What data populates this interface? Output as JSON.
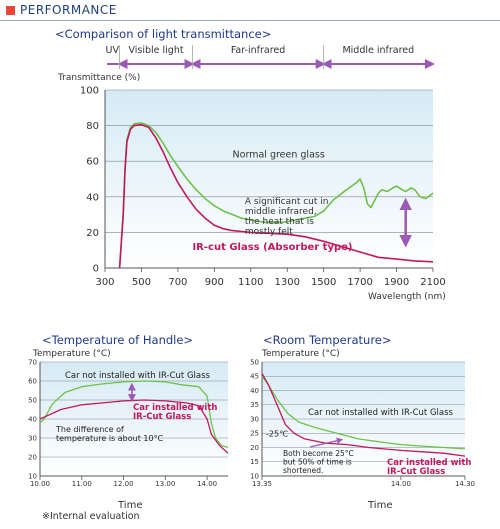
{
  "header": {
    "title": "PERFORMANCE"
  },
  "footnote": "※Internal evaluation",
  "colors": {
    "accent": "#e8453c",
    "title": "#1f3a8a",
    "green": "#6cc24a",
    "magenta": "#c2185b",
    "arrow": "#9c59b6",
    "plot_bg_top": "#e4f1f8",
    "plot_bg_bottom": "#ffffff"
  },
  "chart_data": [
    {
      "type": "line",
      "title": "<Comparison of light transmittance>",
      "xlabel": "Wavelength (nm)",
      "ylabel": "Transmittance (%)",
      "xlim": [
        300,
        2100
      ],
      "ylim": [
        0,
        100
      ],
      "x_ticks": [
        300,
        500,
        700,
        900,
        1100,
        1300,
        1500,
        1700,
        1900,
        2100
      ],
      "y_ticks": [
        0,
        20,
        40,
        60,
        80,
        100
      ],
      "grid": true,
      "bands": [
        {
          "label": "UV",
          "from": 300,
          "to": 380
        },
        {
          "label": "Visible light",
          "from": 380,
          "to": 780
        },
        {
          "label": "Far-infrared",
          "from": 780,
          "to": 1500
        },
        {
          "label": "Middle infrared",
          "from": 1500,
          "to": 2100
        }
      ],
      "series": [
        {
          "name": "Normal green glass",
          "color": "#6cc24a",
          "points": [
            [
              380,
              0
            ],
            [
              400,
              30
            ],
            [
              410,
              55
            ],
            [
              420,
              72
            ],
            [
              440,
              79
            ],
            [
              460,
              81
            ],
            [
              500,
              81.5
            ],
            [
              540,
              80
            ],
            [
              580,
              76
            ],
            [
              620,
              70
            ],
            [
              660,
              63
            ],
            [
              700,
              57
            ],
            [
              750,
              50
            ],
            [
              800,
              44
            ],
            [
              850,
              39
            ],
            [
              900,
              35
            ],
            [
              950,
              32
            ],
            [
              1000,
              30
            ],
            [
              1050,
              28
            ],
            [
              1100,
              27
            ],
            [
              1150,
              26
            ],
            [
              1200,
              25.5
            ],
            [
              1250,
              25.5
            ],
            [
              1300,
              26
            ],
            [
              1350,
              27
            ],
            [
              1400,
              28
            ],
            [
              1450,
              29
            ],
            [
              1500,
              32
            ],
            [
              1550,
              38
            ],
            [
              1600,
              42
            ],
            [
              1640,
              45
            ],
            [
              1680,
              48
            ],
            [
              1700,
              50
            ],
            [
              1720,
              45
            ],
            [
              1740,
              36
            ],
            [
              1760,
              34
            ],
            [
              1780,
              38
            ],
            [
              1800,
              42
            ],
            [
              1820,
              44
            ],
            [
              1850,
              43
            ],
            [
              1880,
              45
            ],
            [
              1900,
              46
            ],
            [
              1930,
              44
            ],
            [
              1950,
              43
            ],
            [
              1980,
              45
            ],
            [
              2000,
              44
            ],
            [
              2030,
              40
            ],
            [
              2060,
              39
            ],
            [
              2100,
              42
            ]
          ]
        },
        {
          "name": "IR-cut Glass (Absorber type)",
          "color": "#c2185b",
          "points": [
            [
              380,
              0
            ],
            [
              400,
              30
            ],
            [
              410,
              55
            ],
            [
              420,
              71
            ],
            [
              440,
              78
            ],
            [
              460,
              80
            ],
            [
              500,
              80.5
            ],
            [
              540,
              79
            ],
            [
              580,
              73
            ],
            [
              620,
              65
            ],
            [
              660,
              56
            ],
            [
              700,
              48
            ],
            [
              750,
              40
            ],
            [
              800,
              33
            ],
            [
              850,
              28
            ],
            [
              900,
              24
            ],
            [
              950,
              22
            ],
            [
              1000,
              21
            ],
            [
              1050,
              20.5
            ],
            [
              1100,
              20
            ],
            [
              1200,
              19.5
            ],
            [
              1300,
              19
            ],
            [
              1400,
              17.5
            ],
            [
              1500,
              15
            ],
            [
              1600,
              12
            ],
            [
              1700,
              9
            ],
            [
              1800,
              6
            ],
            [
              1900,
              5
            ],
            [
              2000,
              4
            ],
            [
              2100,
              3.5
            ]
          ]
        }
      ],
      "annotations": [
        {
          "text": "Normal green glass",
          "x": 1000,
          "y": 62
        },
        {
          "text": "IR-cut Glass (Absorber type)",
          "x": 780,
          "y": 10
        },
        {
          "text": "A significant cut in middle infrared, the heat that is mostly felt",
          "x": 1620,
          "y": 30
        }
      ]
    },
    {
      "type": "line",
      "title": "<Temperature of Handle>",
      "xlabel": "Time",
      "ylabel": "Temperature (°C)",
      "xlim": [
        10.0,
        14.5
      ],
      "ylim": [
        10,
        70
      ],
      "x_ticks": [
        10.0,
        11.0,
        12.0,
        13.0,
        14.0
      ],
      "x_tick_labels": [
        "10.00",
        "11.00",
        "12.00",
        "13.00",
        "14.00"
      ],
      "y_ticks": [
        10,
        20,
        30,
        40,
        50,
        60,
        70
      ],
      "grid": true,
      "series": [
        {
          "name": "Car not installed with IR-Cut Glass",
          "color": "#6cc24a",
          "points": [
            [
              10.0,
              38
            ],
            [
              10.1,
              40
            ],
            [
              10.3,
              48
            ],
            [
              10.6,
              54
            ],
            [
              11.0,
              57
            ],
            [
              11.5,
              58.5
            ],
            [
              12.0,
              59.5
            ],
            [
              12.5,
              60
            ],
            [
              13.0,
              59.5
            ],
            [
              13.4,
              58
            ],
            [
              13.8,
              57
            ],
            [
              14.0,
              52
            ],
            [
              14.1,
              38
            ],
            [
              14.2,
              30
            ],
            [
              14.35,
              26
            ],
            [
              14.5,
              25
            ]
          ]
        },
        {
          "name": "Car installed with IR-Cut Glass",
          "color": "#c2185b",
          "points": [
            [
              10.0,
              40
            ],
            [
              10.2,
              42
            ],
            [
              10.5,
              45
            ],
            [
              11.0,
              47.5
            ],
            [
              11.5,
              48.5
            ],
            [
              12.0,
              49.5
            ],
            [
              12.5,
              50
            ],
            [
              13.0,
              49.5
            ],
            [
              13.5,
              48.5
            ],
            [
              13.8,
              47
            ],
            [
              14.0,
              40
            ],
            [
              14.1,
              32
            ],
            [
              14.3,
              26
            ],
            [
              14.5,
              22
            ]
          ]
        }
      ],
      "annotations": [
        {
          "text": "Car not installed with IR-Cut Glass",
          "x": 12.0,
          "y": 64
        },
        {
          "text": "Car installed with IR-Cut Glass",
          "x": 13.2,
          "y": 49
        },
        {
          "text": "The difference of temperature is about 10°C",
          "x": 10.5,
          "y": 36
        }
      ]
    },
    {
      "type": "line",
      "title": "<Room Temperature>",
      "xlabel": "Time",
      "ylabel": "Temperature (°C)",
      "xlim": [
        13.35,
        14.3
      ],
      "ylim": [
        10,
        50
      ],
      "x_ticks": [
        13.35,
        14.0,
        14.3
      ],
      "x_tick_labels": [
        "13.35",
        "14.00",
        "14.30"
      ],
      "y_ticks": [
        10,
        15,
        20,
        25,
        30,
        35,
        40,
        45,
        50
      ],
      "grid": true,
      "series": [
        {
          "name": "Car not installed with IR-Cut Glass",
          "color": "#6cc24a",
          "points": [
            [
              13.35,
              45
            ],
            [
              13.38,
              42
            ],
            [
              13.42,
              37
            ],
            [
              13.47,
              32
            ],
            [
              13.52,
              29
            ],
            [
              13.6,
              27
            ],
            [
              13.7,
              25
            ],
            [
              13.8,
              23
            ],
            [
              13.9,
              22
            ],
            [
              14.0,
              21
            ],
            [
              14.1,
              20.5
            ],
            [
              14.2,
              20
            ],
            [
              14.3,
              19.5
            ]
          ]
        },
        {
          "name": "Car installed with IR-Cut Glass",
          "color": "#c2185b",
          "points": [
            [
              13.35,
              46
            ],
            [
              13.38,
              42
            ],
            [
              13.42,
              35
            ],
            [
              13.46,
              28
            ],
            [
              13.5,
              25
            ],
            [
              13.55,
              23
            ],
            [
              13.65,
              21.5
            ],
            [
              13.75,
              21
            ],
            [
              13.85,
              20
            ],
            [
              14.0,
              19
            ],
            [
              14.1,
              18.5
            ],
            [
              14.2,
              18
            ],
            [
              14.3,
              17
            ]
          ]
        }
      ],
      "annotations": [
        {
          "text": "Car not installed with IR-Cut Glass",
          "x": 13.9,
          "y": 31
        },
        {
          "text": "-25℃",
          "x": 13.38,
          "y": 25
        },
        {
          "text": "Both become 25°C but 50% of time is shortened.",
          "x": 13.47,
          "y": 18
        },
        {
          "text": "Car installed with IR-Cut Glass",
          "x": 14.15,
          "y": 16
        }
      ]
    }
  ]
}
